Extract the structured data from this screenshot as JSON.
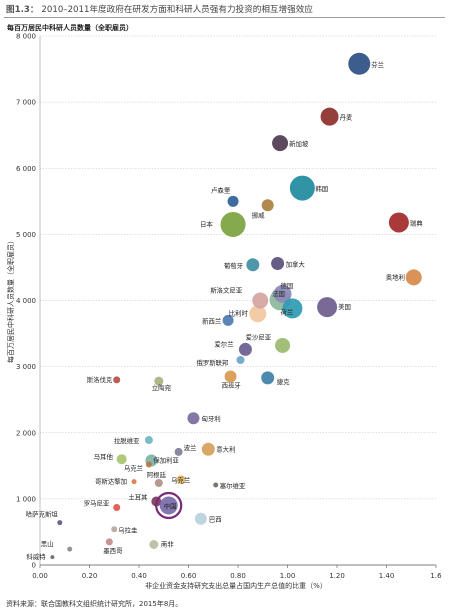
{
  "figure": {
    "number": "图1.3：",
    "title": "2010–2011年度政府在研发方面和科研人员强有力投资的相互增强效应",
    "y_unit_label": "每百万居民中科研人员数量（全职雇员）",
    "source": "资料来源：联合国教科文组织统计研究所，2015年8月。"
  },
  "chart_data": {
    "type": "scatter",
    "xlabel": "非企业资金支持研究支出总量占国内生产总值的比重（%）",
    "ylabel": "每百万居民中科研人员数量（全职雇员）",
    "xlim": [
      0,
      1.6
    ],
    "ylim": [
      0,
      8000
    ],
    "x_ticks": [
      "0.00",
      "0.20",
      "0.40",
      "0.60",
      "0.80",
      "1.00",
      "1.20",
      "1.40",
      "1.6"
    ],
    "y_ticks": [
      "0",
      "1 000",
      "2 000",
      "3 000",
      "4 000",
      "5 000",
      "6 000",
      "7 000",
      "8 000"
    ],
    "grid": true,
    "highlighted": "中国",
    "points": [
      {
        "name": "芬兰",
        "x": 1.29,
        "y": 7580,
        "size": 11,
        "color": "#2d4f84"
      },
      {
        "name": "丹麦",
        "x": 1.17,
        "y": 6780,
        "size": 9,
        "color": "#8b2f2a"
      },
      {
        "name": "新加坡",
        "x": 0.97,
        "y": 6380,
        "size": 8,
        "color": "#4e3a4f"
      },
      {
        "name": "韩国",
        "x": 1.06,
        "y": 5700,
        "size": 12.5,
        "color": "#1f8a9e"
      },
      {
        "name": "卢森堡",
        "x": 0.78,
        "y": 5500,
        "size": 5.5,
        "color": "#2e5f98"
      },
      {
        "name": "挪威",
        "x": 0.92,
        "y": 5440,
        "size": 6,
        "color": "#a87f3e"
      },
      {
        "name": "瑞典",
        "x": 1.45,
        "y": 5180,
        "size": 10,
        "color": "#a2282a"
      },
      {
        "name": "日本",
        "x": 0.78,
        "y": 5150,
        "size": 12.5,
        "color": "#7ba33e"
      },
      {
        "name": "葡萄牙",
        "x": 0.86,
        "y": 4540,
        "size": 6.5,
        "color": "#3f8fa3"
      },
      {
        "name": "加拿大",
        "x": 0.96,
        "y": 4560,
        "size": 6.5,
        "color": "#5b4f7c"
      },
      {
        "name": "奥地利",
        "x": 1.51,
        "y": 4350,
        "size": 8,
        "color": "#d6894a"
      },
      {
        "name": "新西兰",
        "x": 0.76,
        "y": 3700,
        "size": 5.5,
        "color": "#4f7ab1"
      },
      {
        "name": "比利时",
        "x": 0.88,
        "y": 3800,
        "size": 8.5,
        "color": "#f2c79e"
      },
      {
        "name": "斯洛文尼亚",
        "x": 0.89,
        "y": 4000,
        "size": 8,
        "color": "#d4a4a0"
      },
      {
        "name": "法国",
        "x": 0.97,
        "y": 4010,
        "size": 10.5,
        "color": "#8ab89a"
      },
      {
        "name": "德国",
        "x": 0.98,
        "y": 4100,
        "size": 9,
        "color": "#8a8ab8"
      },
      {
        "name": "荷兰",
        "x": 1.02,
        "y": 3880,
        "size": 10,
        "color": "#2e9ab3"
      },
      {
        "name": "美国",
        "x": 1.16,
        "y": 3900,
        "size": 10,
        "color": "#6c5c8e"
      },
      {
        "name": "爱沙尼亚",
        "x": 0.98,
        "y": 3320,
        "size": 7.5,
        "color": "#9ab86e"
      },
      {
        "name": "爱尔兰",
        "x": 0.83,
        "y": 3260,
        "size": 6.5,
        "color": "#6d5a90"
      },
      {
        "name": "俄罗斯联邦",
        "x": 0.81,
        "y": 3100,
        "size": 4,
        "color": "#6aa6c9"
      },
      {
        "name": "斯洛伐克",
        "x": 0.31,
        "y": 2800,
        "size": 3.5,
        "color": "#b4504a"
      },
      {
        "name": "立陶宛",
        "x": 0.48,
        "y": 2780,
        "size": 4.5,
        "color": "#a6b47e"
      },
      {
        "name": "西班牙",
        "x": 0.77,
        "y": 2850,
        "size": 6,
        "color": "#d9994e"
      },
      {
        "name": "捷克",
        "x": 0.92,
        "y": 2830,
        "size": 6.5,
        "color": "#3f7fa9"
      },
      {
        "name": "匈牙利",
        "x": 0.62,
        "y": 2220,
        "size": 6,
        "color": "#7a6a9e"
      },
      {
        "name": "拉脱维亚",
        "x": 0.44,
        "y": 1890,
        "size": 4,
        "color": "#6bb6c2"
      },
      {
        "name": "波兰",
        "x": 0.56,
        "y": 1710,
        "size": 4,
        "color": "#7e7e96"
      },
      {
        "name": "意大利",
        "x": 0.68,
        "y": 1750,
        "size": 6.5,
        "color": "#d8a05a"
      },
      {
        "name": "马耳他",
        "x": 0.33,
        "y": 1600,
        "size": 5,
        "color": "#a8c46a"
      },
      {
        "name": "保加利亚",
        "x": 0.45,
        "y": 1580,
        "size": 6,
        "color": "#7fb2a6"
      },
      {
        "name": "乌克兰",
        "x": 0.44,
        "y": 1520,
        "size": 3,
        "color": "#b6784a"
      },
      {
        "name": "阿根廷",
        "x": 0.48,
        "y": 1240,
        "size": 4,
        "color": "#b09088"
      },
      {
        "name": "乌克兰",
        "x": 0.57,
        "y": 1290,
        "size": 4.5,
        "color": "#e6b86a"
      },
      {
        "name": "哥斯达黎加",
        "x": 0.38,
        "y": 1260,
        "size": 2.5,
        "color": "#e07a4a"
      },
      {
        "name": "塞尔维亚",
        "x": 0.71,
        "y": 1210,
        "size": 2.5,
        "color": "#6f6a5e"
      },
      {
        "name": "土耳其",
        "x": 0.47,
        "y": 960,
        "size": 5,
        "color": "#7a3a5a"
      },
      {
        "name": "中国",
        "x": 0.52,
        "y": 900,
        "size": 9,
        "color": "#7b6aa8"
      },
      {
        "name": "罗马尼亚",
        "x": 0.31,
        "y": 870,
        "size": 3.5,
        "color": "#e2564a"
      },
      {
        "name": "哈萨克斯坦",
        "x": 0.08,
        "y": 640,
        "size": 2.5,
        "color": "#5b5b80"
      },
      {
        "name": "巴西",
        "x": 0.65,
        "y": 700,
        "size": 6,
        "color": "#b8d0dc"
      },
      {
        "name": "乌拉圭",
        "x": 0.3,
        "y": 540,
        "size": 3,
        "color": "#b4a8a0"
      },
      {
        "name": "墨西哥",
        "x": 0.28,
        "y": 350,
        "size": 3.5,
        "color": "#c48a8a"
      },
      {
        "name": "南非",
        "x": 0.46,
        "y": 310,
        "size": 4.5,
        "color": "#b4c0a0"
      },
      {
        "name": "黑山",
        "x": 0.12,
        "y": 240,
        "size": 2.5,
        "color": "#8a8a8a"
      },
      {
        "name": "科威特",
        "x": 0.05,
        "y": 120,
        "size": 2,
        "color": "#6a6a6a"
      }
    ]
  }
}
